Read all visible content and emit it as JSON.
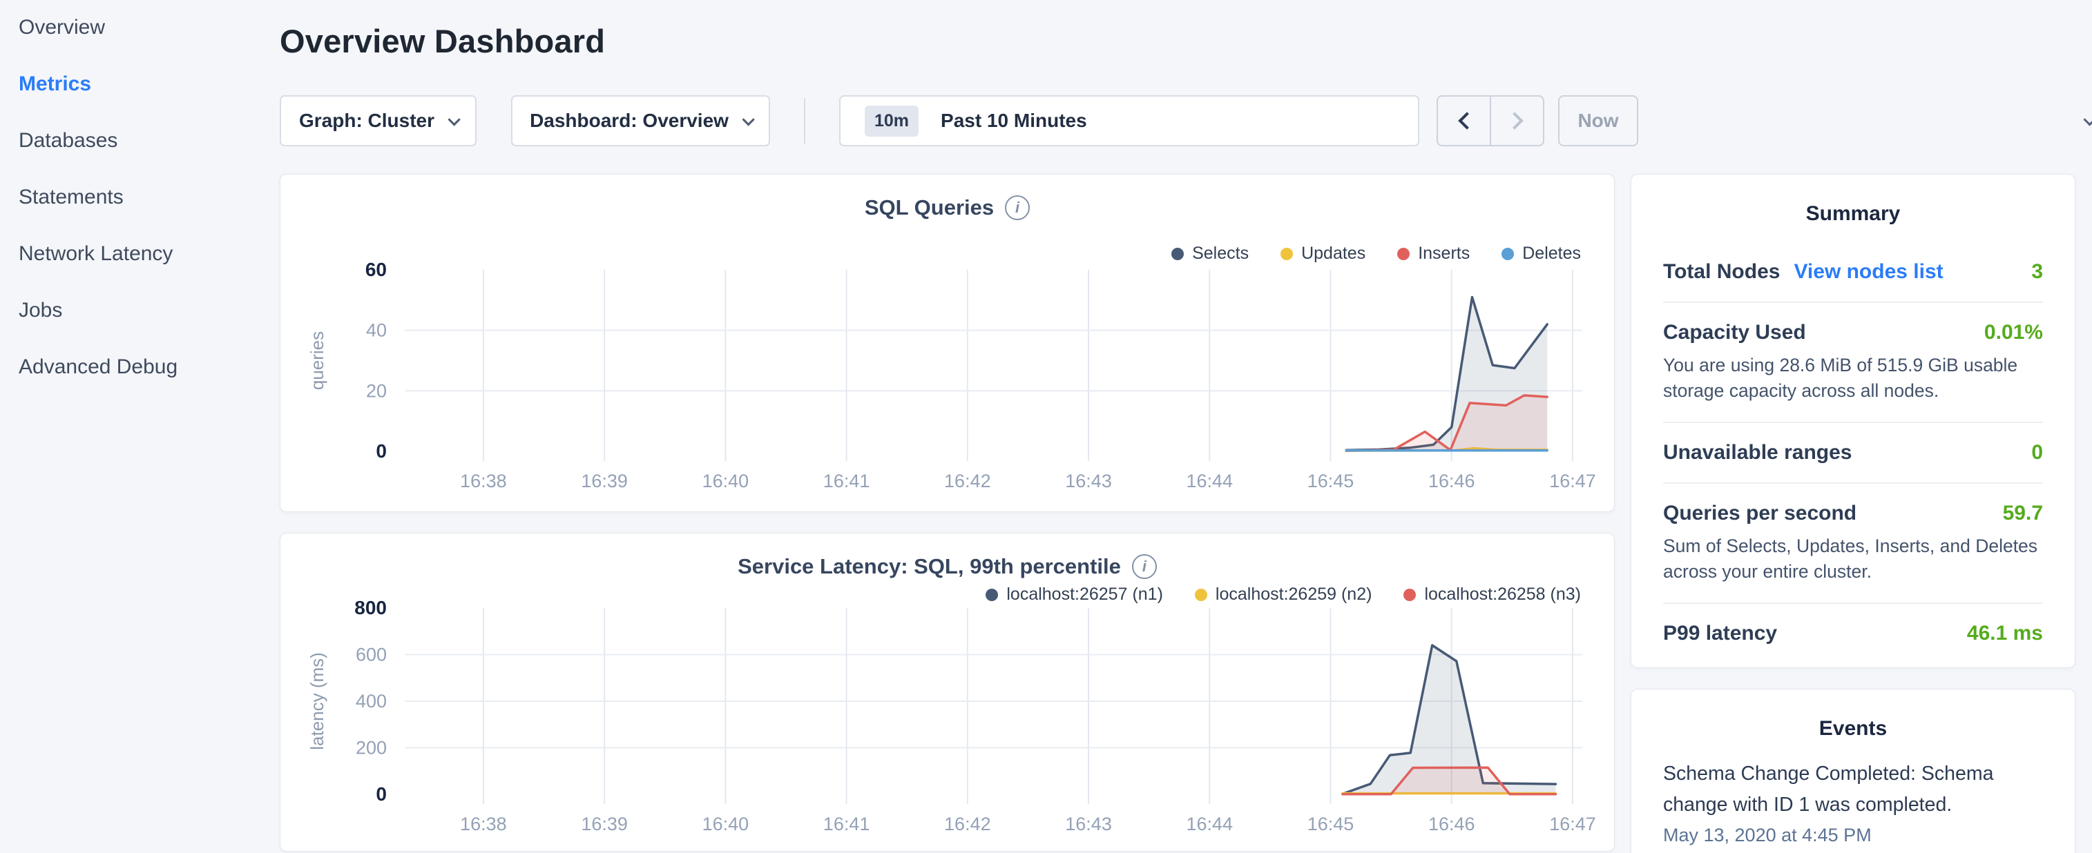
{
  "sidebar": {
    "items": [
      {
        "label": "Overview",
        "active": false
      },
      {
        "label": "Metrics",
        "active": true
      },
      {
        "label": "Databases",
        "active": false
      },
      {
        "label": "Statements",
        "active": false
      },
      {
        "label": "Network Latency",
        "active": false
      },
      {
        "label": "Jobs",
        "active": false
      },
      {
        "label": "Advanced Debug",
        "active": false
      }
    ]
  },
  "header": {
    "title": "Overview Dashboard"
  },
  "toolbar": {
    "graph_dropdown": "Graph: Cluster",
    "dashboard_dropdown": "Dashboard: Overview",
    "range_badge": "10m",
    "range_label": "Past 10 Minutes",
    "now_label": "Now"
  },
  "summary": {
    "title": "Summary",
    "rows": [
      {
        "label": "Total Nodes",
        "link": "View nodes list",
        "value": "3"
      },
      {
        "label": "Capacity Used",
        "value": "0.01%",
        "subtext": "You are using 28.6 MiB of 515.9 GiB usable storage capacity across all nodes."
      },
      {
        "label": "Unavailable ranges",
        "value": "0"
      },
      {
        "label": "Queries per second",
        "value": "59.7",
        "subtext": "Sum of Selects, Updates, Inserts, and Deletes across your entire cluster."
      },
      {
        "label": "P99 latency",
        "value": "46.1 ms"
      }
    ],
    "value_color": "#55ab1d",
    "link_color": "#2b7cf7"
  },
  "events": {
    "title": "Events",
    "items": [
      {
        "message": "Schema Change Completed: Schema change with ID 1 was completed.",
        "timestamp": "May 13, 2020 at 4:45 PM"
      }
    ]
  },
  "chart_data": [
    {
      "type": "area",
      "title": "SQL Queries",
      "ylabel": "queries",
      "x_ticks": [
        "16:38",
        "16:39",
        "16:40",
        "16:41",
        "16:42",
        "16:43",
        "16:44",
        "16:45",
        "16:46",
        "16:47"
      ],
      "x_tick_values": [
        1,
        2,
        3,
        4,
        5,
        6,
        7,
        8,
        9,
        10
      ],
      "x_domain": [
        0.35,
        10.08
      ],
      "y_domain": [
        0,
        60
      ],
      "y_ticks": [
        0,
        20,
        40,
        60
      ],
      "y_gridlines": [
        20,
        40
      ],
      "legend_position": "top-right",
      "grid": true,
      "series": [
        {
          "name": "Selects",
          "color": "#475a75",
          "fill": "rgba(71,90,117,0.13)",
          "points": [
            [
              8.13,
              0.4
            ],
            [
              8.4,
              0.6
            ],
            [
              8.66,
              1.2
            ],
            [
              8.85,
              2.2
            ],
            [
              9.0,
              8
            ],
            [
              9.17,
              51
            ],
            [
              9.34,
              28.5
            ],
            [
              9.52,
              27.5
            ],
            [
              9.79,
              42
            ]
          ]
        },
        {
          "name": "Updates",
          "color": "#f0c33c",
          "fill": "none",
          "points": [
            [
              8.13,
              0.2
            ],
            [
              9.02,
              0.3
            ],
            [
              9.18,
              1.0
            ],
            [
              9.38,
              0.5
            ],
            [
              9.79,
              0.5
            ]
          ]
        },
        {
          "name": "Inserts",
          "color": "#e0615c",
          "fill": "rgba(224,97,92,0.12)",
          "points": [
            [
              8.13,
              0.2
            ],
            [
              8.52,
              0.5
            ],
            [
              8.78,
              6.5
            ],
            [
              8.99,
              0.4
            ],
            [
              9.15,
              16
            ],
            [
              9.45,
              15.2
            ],
            [
              9.6,
              18.5
            ],
            [
              9.79,
              18
            ]
          ]
        },
        {
          "name": "Deletes",
          "color": "#5b9fd4",
          "fill": "none",
          "points": [
            [
              8.13,
              0.3
            ],
            [
              9.79,
              0.3
            ]
          ]
        }
      ]
    },
    {
      "type": "area",
      "title": "Service Latency: SQL, 99th percentile",
      "ylabel": "latency (ms)",
      "x_ticks": [
        "16:38",
        "16:39",
        "16:40",
        "16:41",
        "16:42",
        "16:43",
        "16:44",
        "16:45",
        "16:46",
        "16:47"
      ],
      "x_tick_values": [
        1,
        2,
        3,
        4,
        5,
        6,
        7,
        8,
        9,
        10
      ],
      "x_domain": [
        0.35,
        10.08
      ],
      "y_domain": [
        0,
        800
      ],
      "y_ticks": [
        0,
        200,
        400,
        600,
        800
      ],
      "y_gridlines": [
        200,
        400,
        600
      ],
      "legend_position": "top-right",
      "grid": true,
      "series": [
        {
          "name": "localhost:26257 (n1)",
          "color": "#475a75",
          "fill": "rgba(71,90,117,0.13)",
          "points": [
            [
              8.1,
              2
            ],
            [
              8.33,
              45
            ],
            [
              8.49,
              168
            ],
            [
              8.66,
              178
            ],
            [
              8.84,
              640
            ],
            [
              9.04,
              572
            ],
            [
              9.26,
              48
            ],
            [
              9.6,
              46
            ],
            [
              9.86,
              44
            ]
          ]
        },
        {
          "name": "localhost:26259 (n2)",
          "color": "#f0c33c",
          "fill": "none",
          "points": [
            [
              8.1,
              4
            ],
            [
              9.86,
              4
            ]
          ]
        },
        {
          "name": "localhost:26258 (n3)",
          "color": "#e0615c",
          "fill": "rgba(224,97,92,0.12)",
          "points": [
            [
              8.1,
              1
            ],
            [
              8.5,
              1
            ],
            [
              8.68,
              114
            ],
            [
              9.3,
              115
            ],
            [
              9.48,
              1
            ],
            [
              9.86,
              1
            ]
          ]
        }
      ]
    }
  ]
}
